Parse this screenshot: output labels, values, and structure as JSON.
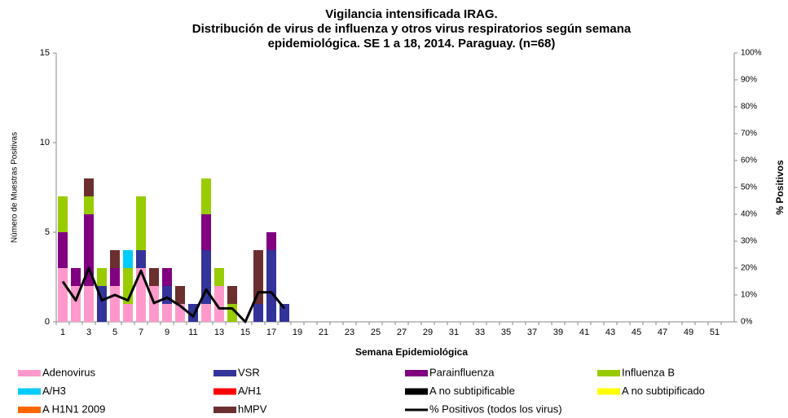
{
  "chart_data": {
    "type": "bar",
    "title": [
      "Vigilancia intensificada IRAG.",
      "Distribución de virus de influenza y otros virus respiratorios según semana",
      "epidemiológica. SE 1 a 18, 2014. Paraguay. (n=68)"
    ],
    "x_label": "Semana Epidemiológica",
    "y_label": "Número de Muestras Positivas",
    "y2_label": "% Positivos",
    "stacked": true,
    "categories": [
      "1",
      null,
      "3",
      null,
      "5",
      null,
      "7",
      null,
      "9",
      null,
      "11",
      null,
      "13",
      null,
      "15",
      null,
      "17",
      null,
      "19",
      null,
      "21",
      null,
      "23",
      null,
      "25",
      null,
      "27",
      null,
      "29",
      null,
      "31",
      null,
      "33",
      null,
      "35",
      null,
      "37",
      null,
      "39",
      null,
      "41",
      null,
      "43",
      null,
      "45",
      null,
      "47",
      null,
      "49",
      null,
      "51",
      null
    ],
    "series": [
      {
        "name": "Adenovirus",
        "color": "#ff99cc",
        "values": [
          3,
          2,
          2,
          0,
          2,
          1,
          3,
          2,
          1,
          1,
          0,
          1,
          2,
          0,
          0,
          0,
          0,
          0,
          null,
          null,
          null,
          null,
          null,
          null,
          null,
          null,
          null,
          null,
          null,
          null,
          null,
          null,
          null,
          null,
          null,
          null,
          null,
          null,
          null,
          null,
          null,
          null,
          null,
          null,
          null,
          null,
          null,
          null,
          null,
          null,
          null,
          null
        ]
      },
      {
        "name": "VSR",
        "color": "#333399",
        "values": [
          0,
          0,
          0,
          2,
          0,
          0,
          1,
          0,
          1,
          0,
          1,
          3,
          0,
          0,
          0,
          1,
          4,
          1,
          null,
          null,
          null,
          null,
          null,
          null,
          null,
          null,
          null,
          null,
          null,
          null,
          null,
          null,
          null,
          null,
          null,
          null,
          null,
          null,
          null,
          null,
          null,
          null,
          null,
          null,
          null,
          null,
          null,
          null,
          null,
          null,
          null,
          null
        ]
      },
      {
        "name": "Parainfluenza",
        "color": "#800080",
        "values": [
          2,
          1,
          4,
          0,
          1,
          0,
          0,
          0,
          1,
          0,
          0,
          2,
          0,
          0,
          0,
          0,
          1,
          0,
          null,
          null,
          null,
          null,
          null,
          null,
          null,
          null,
          null,
          null,
          null,
          null,
          null,
          null,
          null,
          null,
          null,
          null,
          null,
          null,
          null,
          null,
          null,
          null,
          null,
          null,
          null,
          null,
          null,
          null,
          null,
          null,
          null,
          null
        ]
      },
      {
        "name": "Influenza  B",
        "color": "#99cc00",
        "values": [
          2,
          0,
          1,
          1,
          0,
          2,
          3,
          0,
          0,
          0,
          0,
          2,
          1,
          1,
          0,
          0,
          0,
          0,
          null,
          null,
          null,
          null,
          null,
          null,
          null,
          null,
          null,
          null,
          null,
          null,
          null,
          null,
          null,
          null,
          null,
          null,
          null,
          null,
          null,
          null,
          null,
          null,
          null,
          null,
          null,
          null,
          null,
          null,
          null,
          null,
          null,
          null
        ]
      },
      {
        "name": "A/H3",
        "color": "#00ccff",
        "values": [
          0,
          0,
          0,
          0,
          0,
          1,
          0,
          0,
          0,
          0,
          0,
          0,
          0,
          0,
          0,
          0,
          0,
          0,
          null,
          null,
          null,
          null,
          null,
          null,
          null,
          null,
          null,
          null,
          null,
          null,
          null,
          null,
          null,
          null,
          null,
          null,
          null,
          null,
          null,
          null,
          null,
          null,
          null,
          null,
          null,
          null,
          null,
          null,
          null,
          null,
          null,
          null
        ]
      },
      {
        "name": "A/H1",
        "color": "#ff0000",
        "values": [
          0,
          0,
          0,
          0,
          0,
          0,
          0,
          0,
          0,
          0,
          0,
          0,
          0,
          0,
          0,
          0,
          0,
          0,
          null,
          null,
          null,
          null,
          null,
          null,
          null,
          null,
          null,
          null,
          null,
          null,
          null,
          null,
          null,
          null,
          null,
          null,
          null,
          null,
          null,
          null,
          null,
          null,
          null,
          null,
          null,
          null,
          null,
          null,
          null,
          null,
          null,
          null
        ]
      },
      {
        "name": "A no subtipificable",
        "color": "#000000",
        "values": [
          0,
          0,
          0,
          0,
          0,
          0,
          0,
          0,
          0,
          0,
          0,
          0,
          0,
          0,
          0,
          0,
          0,
          0,
          null,
          null,
          null,
          null,
          null,
          null,
          null,
          null,
          null,
          null,
          null,
          null,
          null,
          null,
          null,
          null,
          null,
          null,
          null,
          null,
          null,
          null,
          null,
          null,
          null,
          null,
          null,
          null,
          null,
          null,
          null,
          null,
          null,
          null
        ]
      },
      {
        "name": "A no subtipificado",
        "color": "#ffff00",
        "values": [
          0,
          0,
          0,
          0,
          0,
          0,
          0,
          0,
          0,
          0,
          0,
          0,
          0,
          0,
          0,
          0,
          0,
          0,
          null,
          null,
          null,
          null,
          null,
          null,
          null,
          null,
          null,
          null,
          null,
          null,
          null,
          null,
          null,
          null,
          null,
          null,
          null,
          null,
          null,
          null,
          null,
          null,
          null,
          null,
          null,
          null,
          null,
          null,
          null,
          null,
          null,
          null
        ]
      },
      {
        "name": "A H1N1 2009",
        "color": "#ff6600",
        "values": [
          0,
          0,
          0,
          0,
          0,
          0,
          0,
          0,
          0,
          0,
          0,
          0,
          0,
          0,
          0,
          0,
          0,
          0,
          null,
          null,
          null,
          null,
          null,
          null,
          null,
          null,
          null,
          null,
          null,
          null,
          null,
          null,
          null,
          null,
          null,
          null,
          null,
          null,
          null,
          null,
          null,
          null,
          null,
          null,
          null,
          null,
          null,
          null,
          null,
          null,
          null,
          null
        ]
      },
      {
        "name": "hMPV",
        "color": "#6b2f2f",
        "values": [
          0,
          0,
          1,
          0,
          1,
          0,
          0,
          1,
          0,
          1,
          0,
          0,
          0,
          1,
          0,
          3,
          0,
          0,
          null,
          null,
          null,
          null,
          null,
          null,
          null,
          null,
          null,
          null,
          null,
          null,
          null,
          null,
          null,
          null,
          null,
          null,
          null,
          null,
          null,
          null,
          null,
          null,
          null,
          null,
          null,
          null,
          null,
          null,
          null,
          null,
          null,
          null
        ]
      },
      {
        "name": "% Positivos (todos los virus)",
        "color": "#000000",
        "type": "line",
        "axis": "y2",
        "values": [
          15,
          8,
          20,
          8,
          10,
          8,
          19,
          7,
          9,
          6,
          2,
          12,
          5,
          5,
          0,
          11,
          11,
          5,
          null,
          null,
          null,
          null,
          null,
          null,
          null,
          null,
          null,
          null,
          null,
          null,
          null,
          null,
          null,
          null,
          null,
          null,
          null,
          null,
          null,
          null,
          null,
          null,
          null,
          null,
          null,
          null,
          null,
          null,
          null,
          null,
          null,
          null
        ]
      }
    ],
    "ylim": [
      0,
      15
    ],
    "yticks": [
      0,
      5,
      10,
      15
    ],
    "y2lim": [
      0,
      100
    ],
    "y2ticks": [
      {
        "value": 0,
        "label": "0%"
      },
      {
        "value": 10,
        "label": "10%"
      },
      {
        "value": 20,
        "label": "20%"
      },
      {
        "value": 30,
        "label": "30%"
      },
      {
        "value": 40,
        "label": "40%"
      },
      {
        "value": 50,
        "label": "50%"
      },
      {
        "value": 60,
        "label": "60%"
      },
      {
        "value": 70,
        "label": "70%"
      },
      {
        "value": 80,
        "label": "80%"
      },
      {
        "value": 90,
        "label": "90%"
      },
      {
        "value": 100,
        "label": "100%"
      }
    ],
    "grid": false,
    "legend": "bottom"
  }
}
